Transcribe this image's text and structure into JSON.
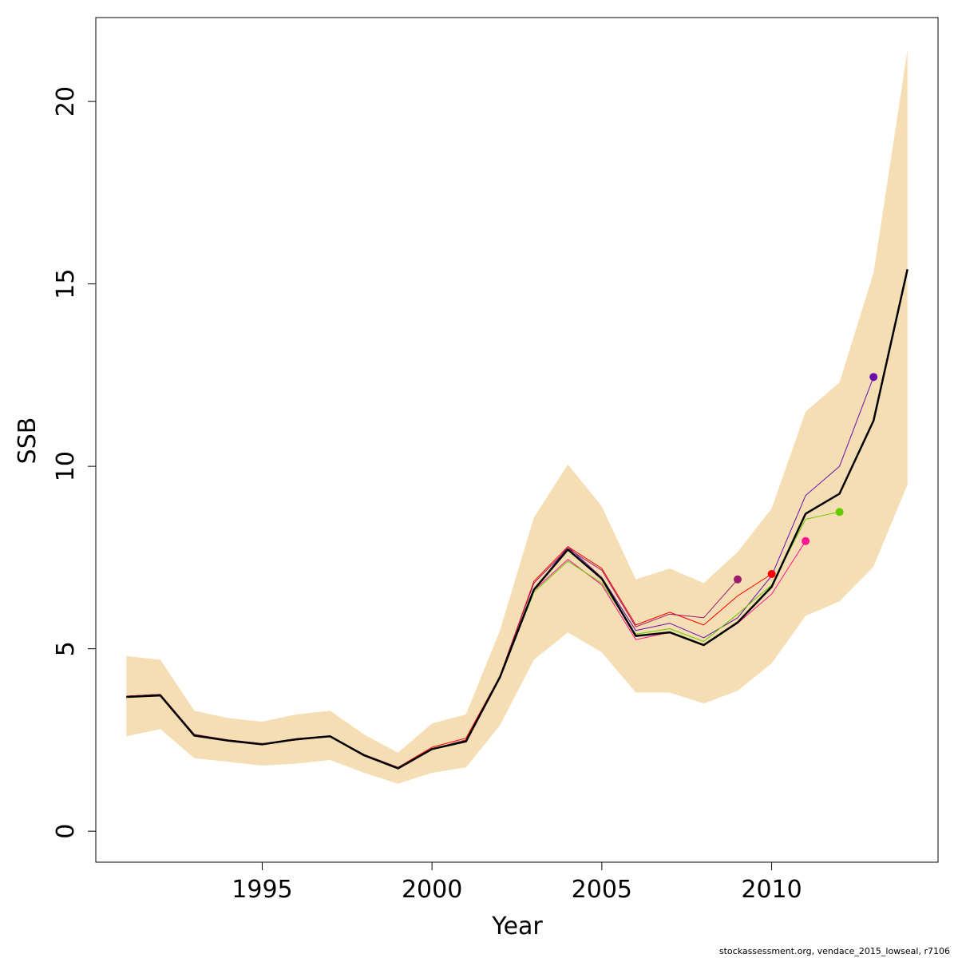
{
  "chart_data": {
    "type": "line",
    "xlabel": "Year",
    "ylabel": "SSB",
    "xlim": [
      1990.1,
      2014.9
    ],
    "ylim": [
      -0.85,
      22.3
    ],
    "x_ticks": [
      1995,
      2000,
      2005,
      2010
    ],
    "y_ticks": [
      0,
      5,
      10,
      15,
      20
    ],
    "grid": false,
    "legend": "none",
    "band": {
      "color": "#F5DEB3",
      "x": [
        1991,
        1992,
        1993,
        1994,
        1995,
        1996,
        1997,
        1998,
        1999,
        2000,
        2001,
        2002,
        2003,
        2004,
        2005,
        2006,
        2007,
        2008,
        2009,
        2010,
        2011,
        2012,
        2013,
        2014
      ],
      "lower": [
        2.6,
        2.8,
        2.0,
        1.9,
        1.8,
        1.85,
        1.95,
        1.6,
        1.3,
        1.6,
        1.75,
        2.9,
        4.7,
        5.45,
        4.9,
        3.8,
        3.8,
        3.5,
        3.85,
        4.6,
        5.9,
        6.3,
        7.25,
        9.5
      ],
      "upper": [
        4.8,
        4.7,
        3.3,
        3.1,
        3.0,
        3.2,
        3.3,
        2.65,
        2.15,
        2.95,
        3.2,
        5.5,
        8.6,
        10.05,
        8.9,
        6.9,
        7.2,
        6.8,
        7.65,
        8.85,
        11.5,
        12.3,
        15.3,
        21.4
      ]
    },
    "series": [
      {
        "color": "#6A0DAD",
        "x": [
          1991,
          1992,
          1993,
          1994,
          1995,
          1996,
          1997,
          1998,
          1999,
          2000,
          2001,
          2002,
          2003,
          2004,
          2005,
          2006,
          2007,
          2008,
          2009,
          2010,
          2011,
          2012,
          2013
        ],
        "values": [
          3.7,
          3.75,
          2.65,
          2.5,
          2.4,
          2.5,
          2.6,
          2.1,
          1.75,
          2.25,
          2.5,
          4.2,
          6.6,
          7.8,
          6.95,
          5.5,
          5.7,
          5.3,
          5.85,
          7.0,
          9.2,
          10.0,
          12.45
        ],
        "end_marker": true
      },
      {
        "color": "#FF1493",
        "x": [
          1991,
          1992,
          1993,
          1994,
          1995,
          1996,
          1997,
          1998,
          1999,
          2000,
          2001,
          2002,
          2003,
          2004,
          2005,
          2006,
          2007,
          2008,
          2009,
          2010,
          2011
        ],
        "values": [
          3.7,
          3.75,
          2.65,
          2.5,
          2.4,
          2.5,
          2.6,
          2.1,
          1.75,
          2.25,
          2.5,
          4.2,
          6.6,
          7.45,
          6.75,
          5.25,
          5.45,
          5.1,
          5.7,
          6.5,
          7.95
        ],
        "end_marker": true
      },
      {
        "color": "#66CC00",
        "x": [
          1991,
          1992,
          1993,
          1994,
          1995,
          1996,
          1997,
          1998,
          1999,
          2000,
          2001,
          2002,
          2003,
          2004,
          2005,
          2006,
          2007,
          2008,
          2009,
          2010,
          2011,
          2012
        ],
        "values": [
          3.7,
          3.75,
          2.65,
          2.5,
          2.4,
          2.5,
          2.6,
          2.1,
          1.75,
          2.25,
          2.5,
          4.2,
          6.55,
          7.4,
          6.8,
          5.4,
          5.55,
          5.2,
          5.95,
          6.75,
          8.55,
          8.75
        ],
        "end_marker": true
      },
      {
        "color": "#FF0000",
        "x": [
          1991,
          1992,
          1993,
          1994,
          1995,
          1996,
          1997,
          1998,
          1999,
          2000,
          2001,
          2002,
          2003,
          2004,
          2005,
          2006,
          2007,
          2008,
          2009,
          2010
        ],
        "values": [
          3.7,
          3.75,
          2.65,
          2.5,
          2.4,
          2.5,
          2.6,
          2.1,
          1.75,
          2.3,
          2.55,
          4.25,
          6.85,
          7.8,
          7.2,
          5.65,
          6.0,
          5.65,
          6.45,
          7.05
        ],
        "end_marker": true
      },
      {
        "color": "#9B1B6E",
        "x": [
          1991,
          1992,
          1993,
          1994,
          1995,
          1996,
          1997,
          1998,
          1999,
          2000,
          2001,
          2002,
          2003,
          2004,
          2005,
          2006,
          2007,
          2008,
          2009
        ],
        "values": [
          3.7,
          3.75,
          2.65,
          2.5,
          2.4,
          2.5,
          2.6,
          2.1,
          1.75,
          2.25,
          2.5,
          4.25,
          6.8,
          7.75,
          7.15,
          5.6,
          5.95,
          5.85,
          6.9
        ],
        "end_marker": true
      },
      {
        "color": "#000000",
        "thick": true,
        "x": [
          1991,
          1992,
          1993,
          1994,
          1995,
          1996,
          1997,
          1998,
          1999,
          2000,
          2001,
          2002,
          2003,
          2004,
          2005,
          2006,
          2007,
          2008,
          2009,
          2010,
          2011,
          2012,
          2013,
          2014
        ],
        "values": [
          3.68,
          3.72,
          2.62,
          2.48,
          2.38,
          2.52,
          2.6,
          2.08,
          1.72,
          2.25,
          2.46,
          4.22,
          6.62,
          7.72,
          6.92,
          5.35,
          5.45,
          5.1,
          5.72,
          6.7,
          8.7,
          9.25,
          11.25,
          15.4
        ],
        "end_marker": false
      }
    ]
  },
  "footer": "stockassessment.org, vendace_2015_lowseal, r7106"
}
